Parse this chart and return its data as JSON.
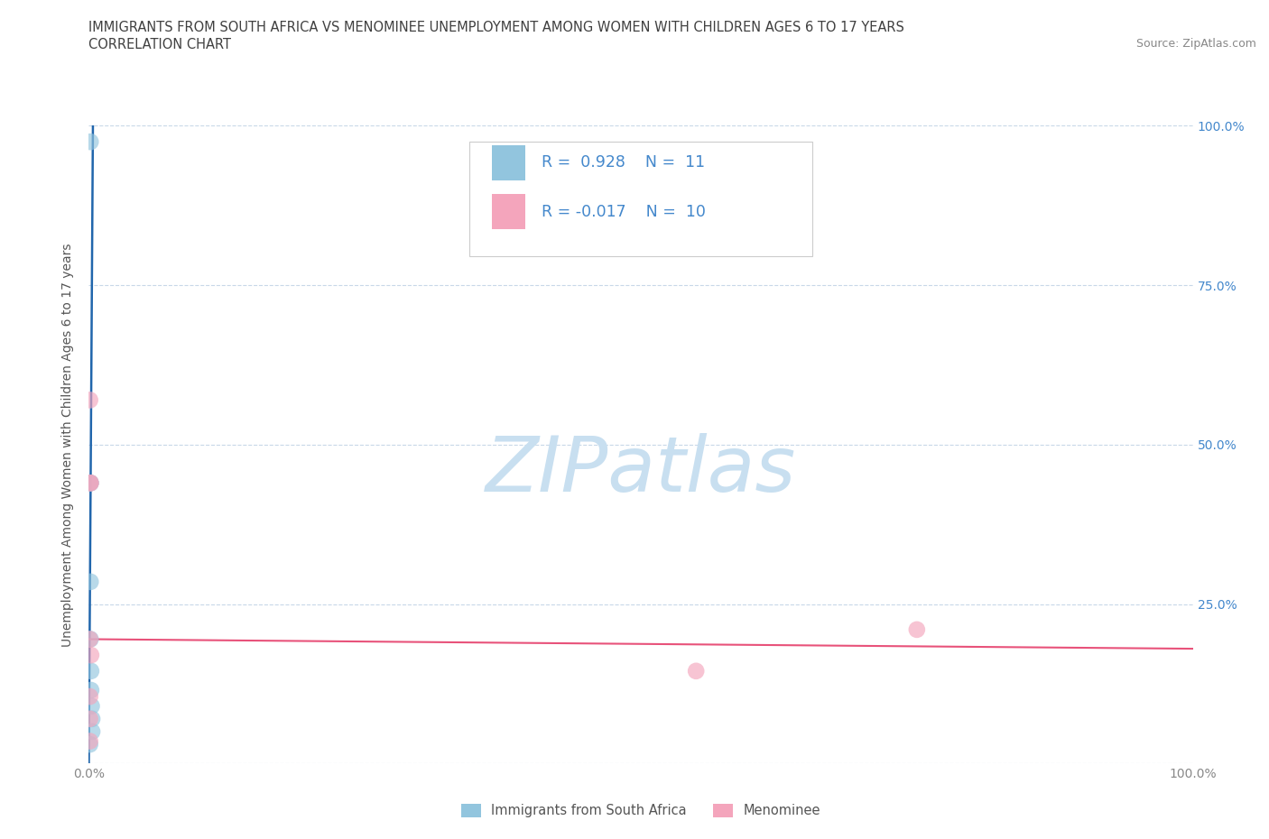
{
  "title_line1": "IMMIGRANTS FROM SOUTH AFRICA VS MENOMINEE UNEMPLOYMENT AMONG WOMEN WITH CHILDREN AGES 6 TO 17 YEARS",
  "title_line2": "CORRELATION CHART",
  "source_text": "Source: ZipAtlas.com",
  "ylabel": "Unemployment Among Women with Children Ages 6 to 17 years",
  "xlim": [
    0.0,
    1.0
  ],
  "ylim": [
    0.0,
    1.0
  ],
  "xticks": [
    0.0,
    0.1,
    0.2,
    0.3,
    0.4,
    0.5,
    0.6,
    0.7,
    0.8,
    0.9,
    1.0
  ],
  "yticks": [
    0.0,
    0.25,
    0.5,
    0.75,
    1.0
  ],
  "xticklabels_left": [
    "0.0%",
    "",
    "",
    "",
    "",
    "",
    "",
    "",
    "",
    "",
    ""
  ],
  "xticklabels_right": [
    "",
    "",
    "",
    "",
    "",
    "",
    "",
    "",
    "",
    "",
    "100.0%"
  ],
  "right_yticklabels": [
    "",
    "25.0%",
    "50.0%",
    "75.0%",
    "100.0%"
  ],
  "blue_scatter_x": [
    0.0015,
    0.0015,
    0.0015,
    0.0015,
    0.0015,
    0.002,
    0.002,
    0.0025,
    0.003,
    0.003,
    0.001
  ],
  "blue_scatter_y": [
    0.975,
    0.44,
    0.44,
    0.285,
    0.195,
    0.145,
    0.115,
    0.09,
    0.07,
    0.05,
    0.03
  ],
  "pink_scatter_x": [
    0.001,
    0.002,
    0.0015,
    0.0015,
    0.001,
    0.001,
    0.55,
    0.75,
    0.001,
    0.001
  ],
  "pink_scatter_y": [
    0.57,
    0.17,
    0.44,
    0.44,
    0.195,
    0.105,
    0.145,
    0.21,
    0.07,
    0.035
  ],
  "blue_line_x": [
    0.0,
    0.0037
  ],
  "blue_line_y": [
    0.0,
    1.0
  ],
  "pink_line_x": [
    0.0,
    1.0
  ],
  "pink_line_y": [
    0.195,
    0.18
  ],
  "blue_color": "#92c5de",
  "pink_color": "#f4a5bc",
  "blue_line_color": "#2166ac",
  "pink_line_color": "#e8527a",
  "legend_R_blue": "0.928",
  "legend_N_blue": "11",
  "legend_R_pink": "-0.017",
  "legend_N_pink": "10",
  "legend_label_blue": "Immigrants from South Africa",
  "legend_label_pink": "Menominee",
  "watermark": "ZIPatlas",
  "watermark_color": "#c8dff0",
  "grid_color": "#c8d8e8",
  "background_color": "#ffffff",
  "title_color": "#404040",
  "axis_label_color": "#555555",
  "tick_color": "#888888",
  "right_ytick_color": "#4488cc",
  "scatter_size": 180,
  "scatter_alpha": 0.65
}
